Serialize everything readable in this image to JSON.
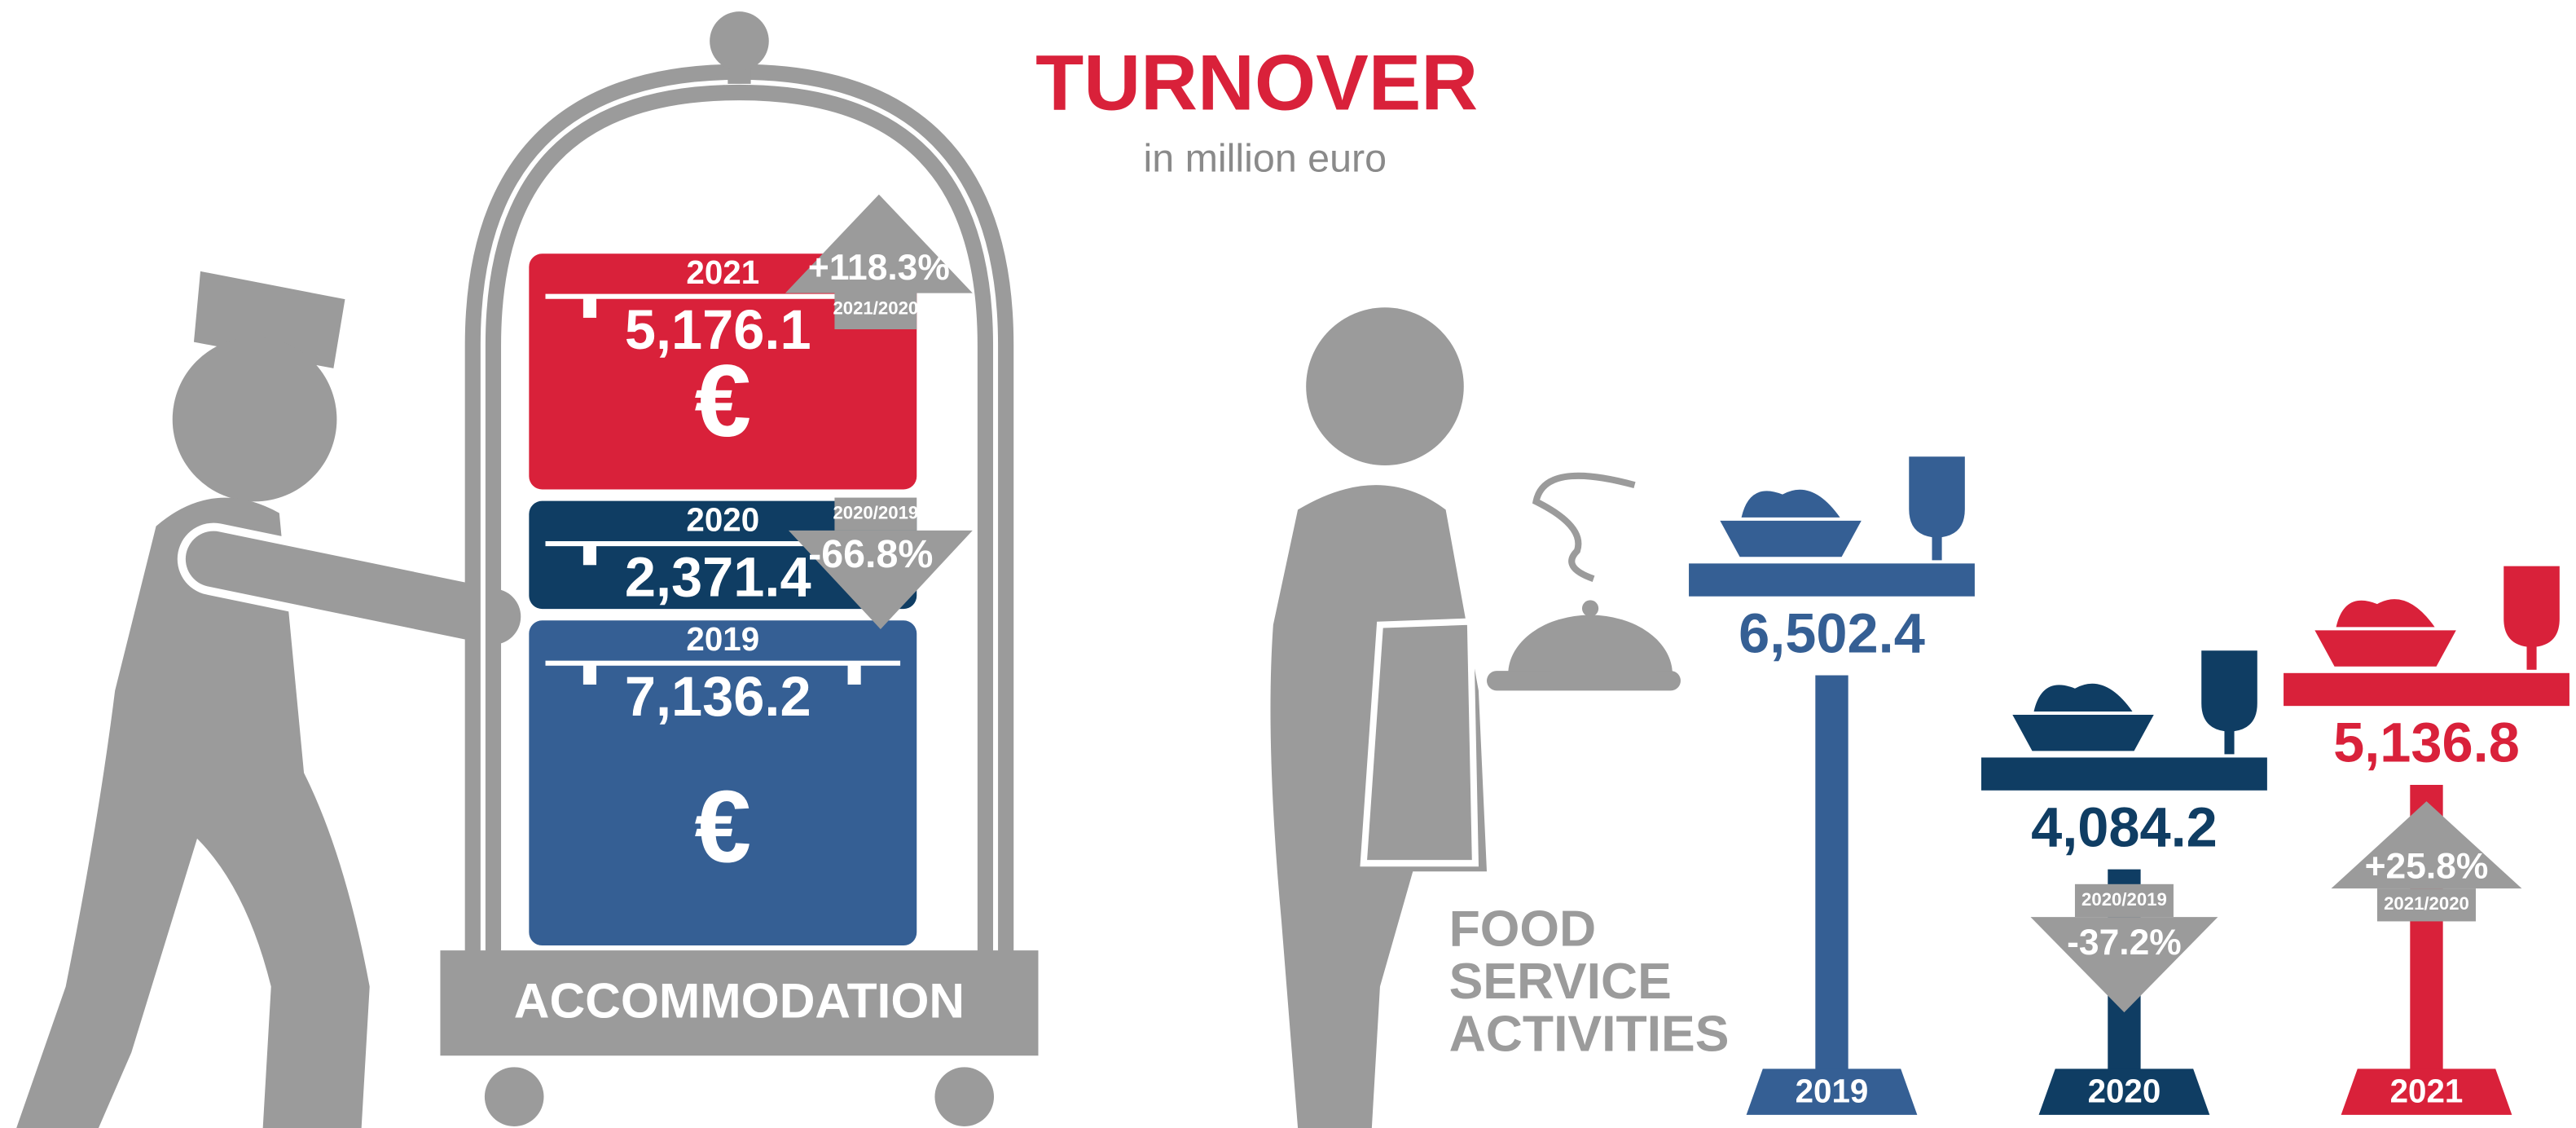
{
  "title": "TURNOVER",
  "subtitle": "in million euro",
  "chart_data": [
    {
      "type": "stacked-box",
      "label": "ACCOMMODATION",
      "symbol": "€",
      "categories": [
        "2019",
        "2020",
        "2021"
      ],
      "colors": [
        "#355f94",
        "#0f3d63",
        "#d9213a"
      ],
      "values": [
        7136.2,
        2371.4,
        5176.1
      ],
      "value_labels": [
        "7,136.2",
        "2,371.4",
        "5,176.1"
      ],
      "changes": [
        null,
        {
          "value": -66.8,
          "label": "-66.8%",
          "period": "2020/2019"
        },
        {
          "value": 118.3,
          "label": "+118.3%",
          "period": "2021/2020"
        }
      ]
    },
    {
      "type": "table-pole",
      "label_lines": [
        "FOOD",
        "SERVICE",
        "ACTIVITIES"
      ],
      "categories": [
        "2019",
        "2020",
        "2021"
      ],
      "colors": [
        "#355f94",
        "#0f3d63",
        "#d9213a"
      ],
      "values": [
        6502.4,
        4084.2,
        5136.8
      ],
      "value_labels": [
        "6,502.4",
        "4,084.2",
        "5,136.8"
      ],
      "changes": [
        null,
        {
          "value": -37.2,
          "label": "-37.2%",
          "period": "2020/2019"
        },
        {
          "value": 25.8,
          "label": "+25.8%",
          "period": "2021/2020"
        }
      ]
    }
  ]
}
